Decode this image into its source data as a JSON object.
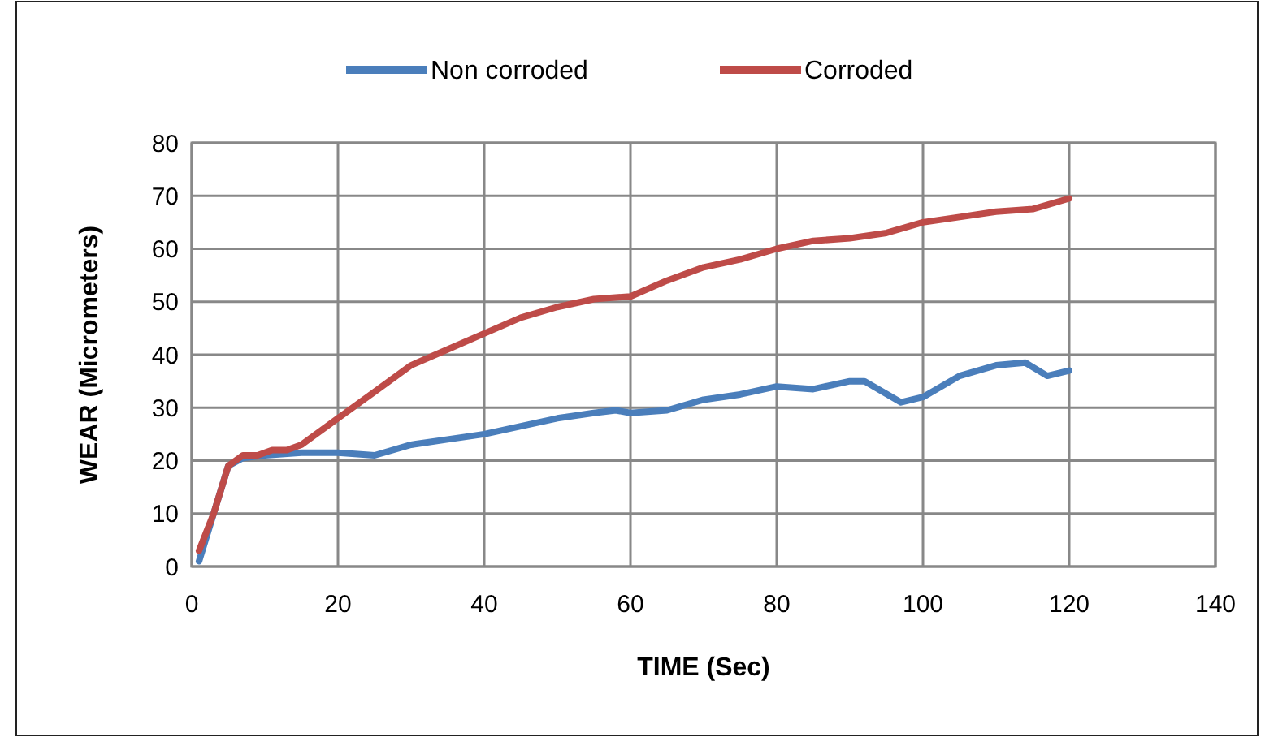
{
  "chart_data": {
    "type": "line",
    "xlabel": "TIME (Sec)",
    "ylabel": "WEAR (Micrometers)",
    "xlim": [
      0,
      140
    ],
    "xticks": [
      0,
      20,
      40,
      60,
      80,
      100,
      120,
      140
    ],
    "ylim": [
      0,
      80
    ],
    "yticks": [
      0,
      10,
      20,
      30,
      40,
      50,
      60,
      70,
      80
    ],
    "grid": true,
    "legend": "top",
    "marker": "none",
    "line_style": "solid",
    "series": [
      {
        "name": "Non corroded",
        "color": "#4a7ebb",
        "x": [
          1,
          3,
          5,
          7,
          10,
          15,
          20,
          25,
          30,
          35,
          40,
          45,
          50,
          55,
          58,
          60,
          65,
          70,
          75,
          80,
          85,
          90,
          92,
          97,
          100,
          105,
          110,
          114,
          117,
          120
        ],
        "values": [
          1,
          10,
          19,
          20.5,
          21,
          21.5,
          21.5,
          21,
          23,
          24,
          25,
          26.5,
          28,
          29,
          29.5,
          29,
          29.5,
          31.5,
          32.5,
          34,
          33.5,
          35,
          35,
          31,
          32,
          36,
          38,
          38.5,
          36,
          37
        ]
      },
      {
        "name": "Corroded",
        "color": "#be4b48",
        "x": [
          1,
          3,
          5,
          7,
          9,
          11,
          13,
          15,
          20,
          25,
          30,
          35,
          40,
          45,
          50,
          55,
          60,
          65,
          70,
          75,
          80,
          85,
          90,
          95,
          100,
          105,
          110,
          115,
          120
        ],
        "values": [
          3,
          10,
          19,
          21,
          21,
          22,
          22,
          23,
          28,
          33,
          38,
          41,
          44,
          47,
          49,
          50.5,
          51,
          54,
          56.5,
          58,
          60,
          61.5,
          62,
          63,
          65,
          66,
          67,
          67.5,
          69.5
        ]
      }
    ]
  }
}
